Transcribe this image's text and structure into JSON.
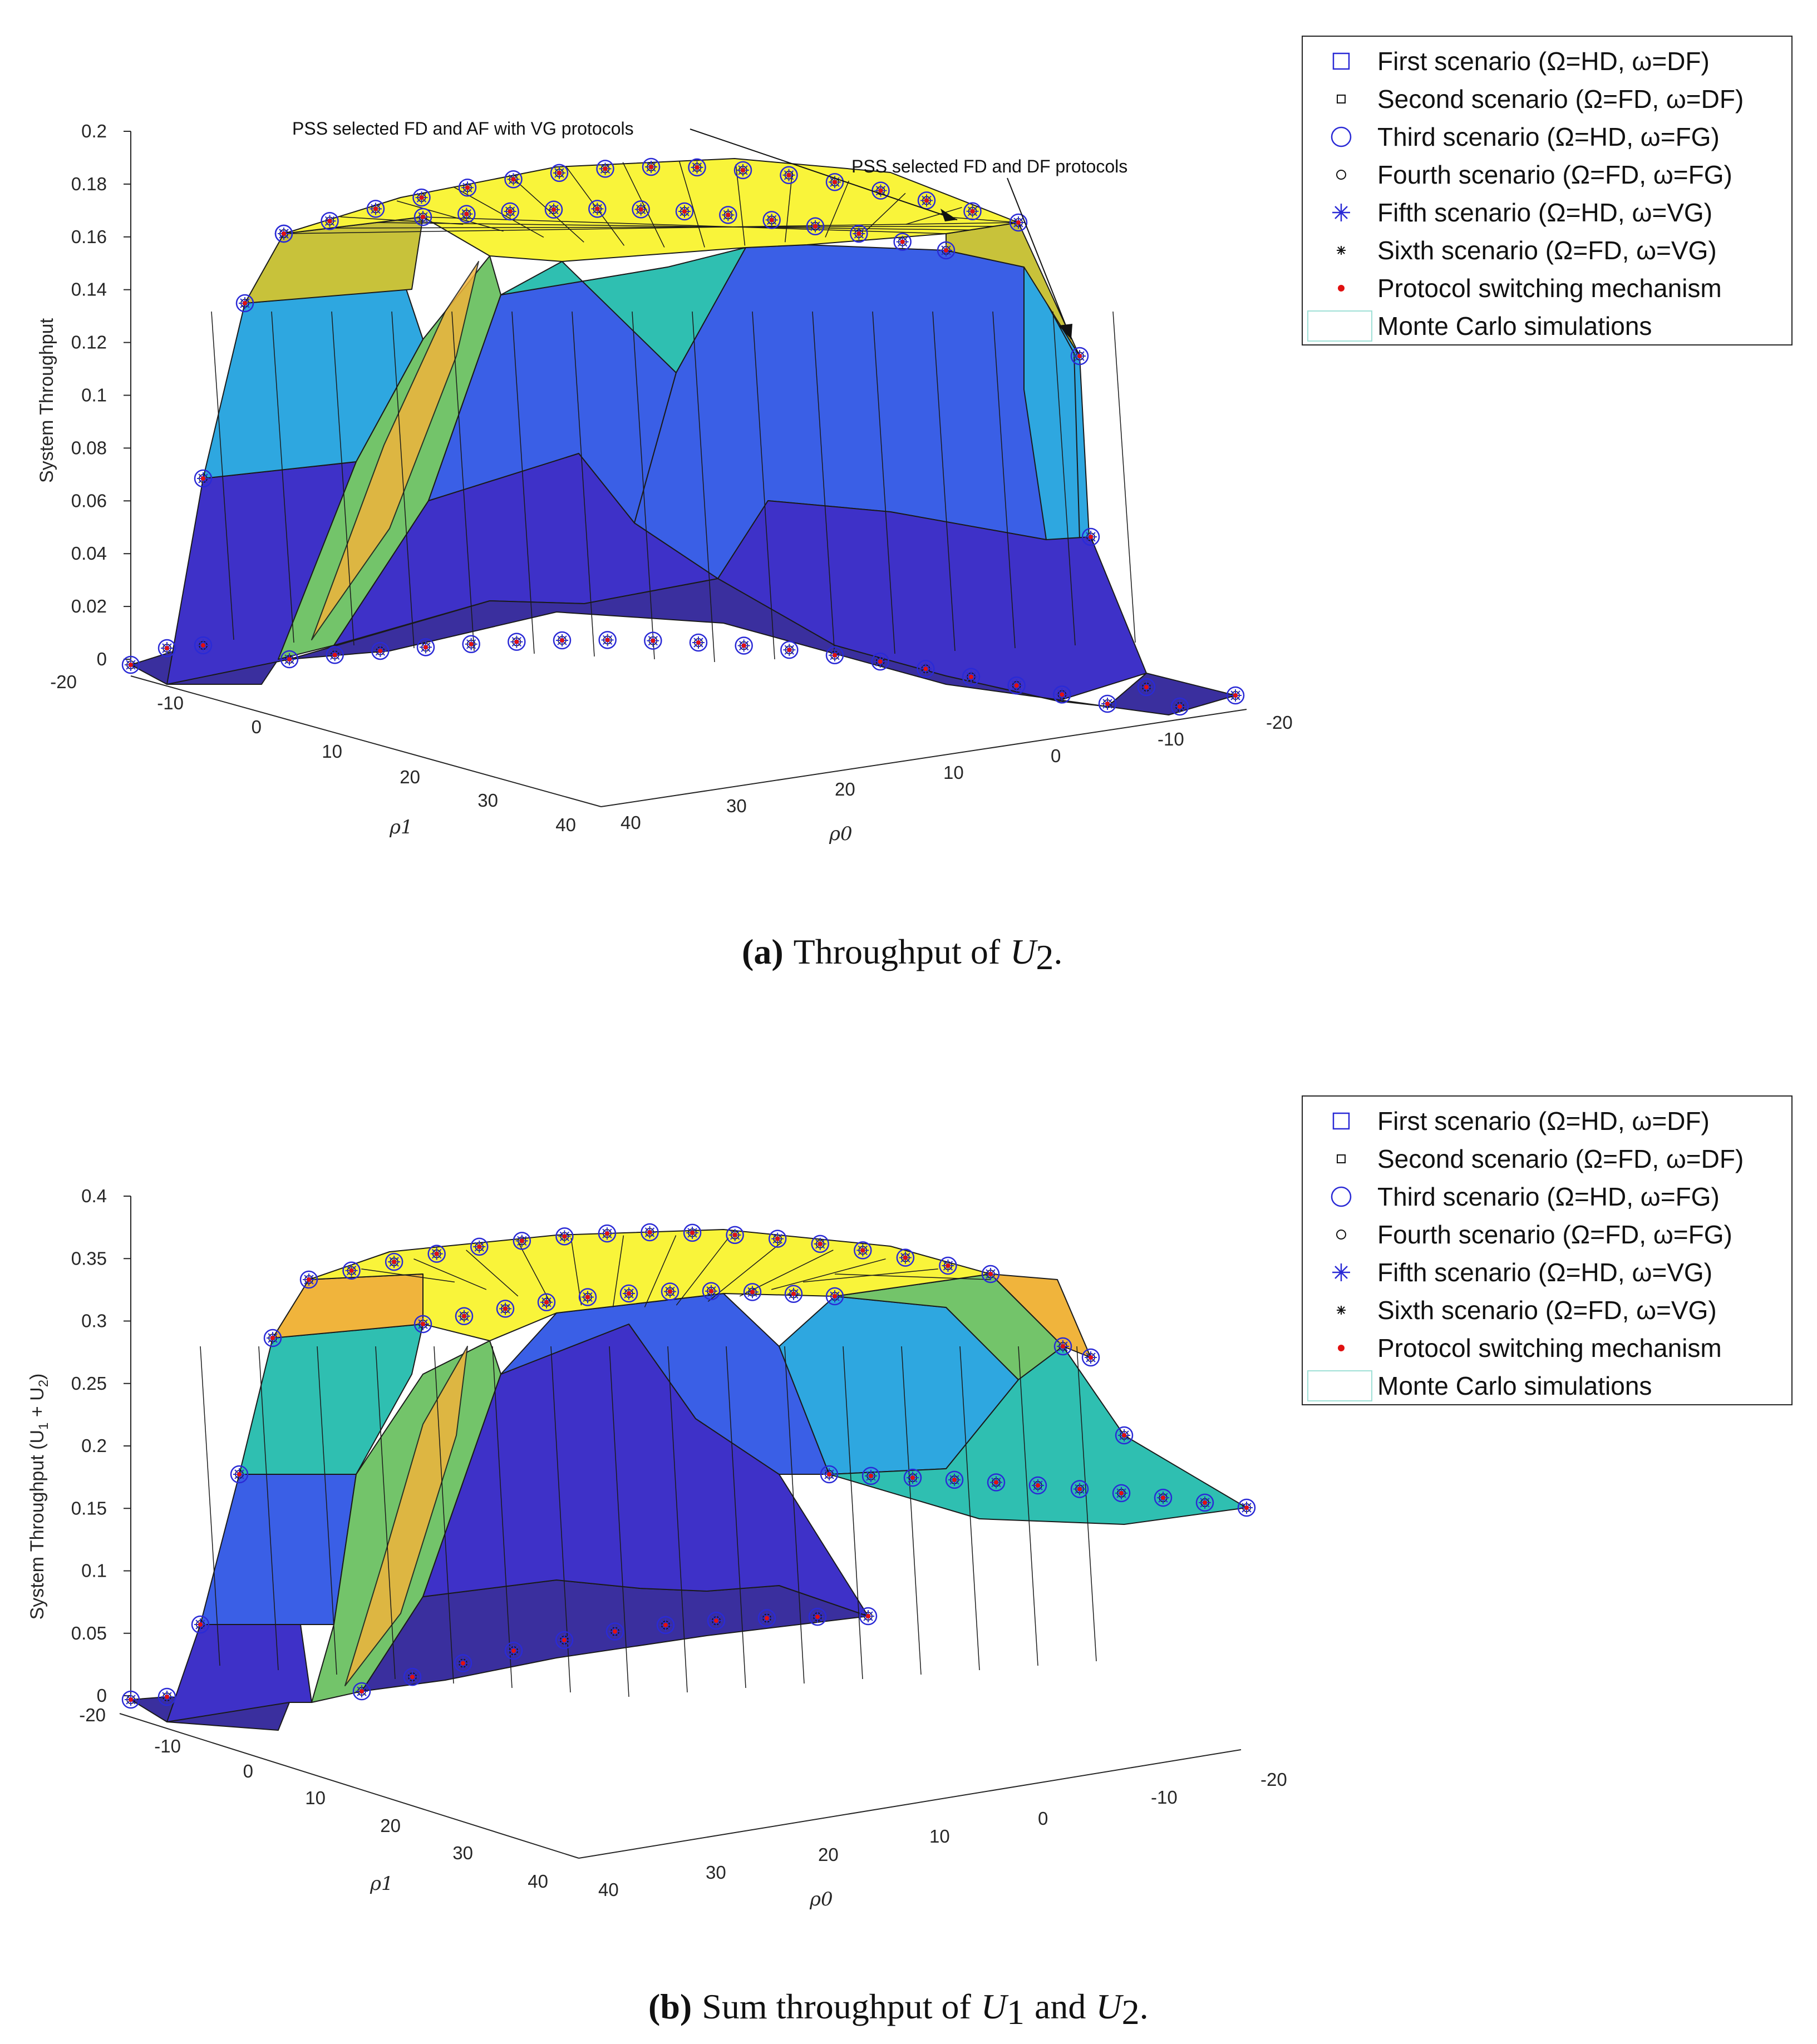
{
  "colors": {
    "yellow": "#f9f43a",
    "olive": "#c8c23a",
    "orange": "#f0b43c",
    "green": "#73c46a",
    "teal": "#2fbfb1",
    "lightblue": "#2ea7e0",
    "blue": "#3a5fe6",
    "darkblue": "#3e31c8",
    "navy": "#3a2f9e",
    "marker_blue": "#2a2ad6",
    "marker_red": "#e01010"
  },
  "legend": {
    "items": [
      {
        "label": "First scenario (Ω=HD, ω=DF)",
        "marker": "square-large"
      },
      {
        "label": "Second scenario (Ω=FD, ω=DF)",
        "marker": "square-small"
      },
      {
        "label": "Third scenario (Ω=HD, ω=FG)",
        "marker": "circle-large"
      },
      {
        "label": "Fourth scenario (Ω=FD, ω=FG)",
        "marker": "circle-small"
      },
      {
        "label": "Fifth scenario (Ω=HD, ω=VG)",
        "marker": "asterisk-blue"
      },
      {
        "label": "Sixth scenario (Ω=FD, ω=VG)",
        "marker": "asterisk-black"
      },
      {
        "label": "Protocol switching mechanism",
        "marker": "dot-red"
      },
      {
        "label": "Monte Carlo simulations",
        "marker": "surface-patch"
      }
    ]
  },
  "chart_data": [
    {
      "type": "surface",
      "title": "",
      "ylabel": "System Throughput",
      "x_axis_label": "ρ1",
      "y_axis_label": "ρ0",
      "x_ticks": [
        "-20",
        "-10",
        "0",
        "10",
        "20",
        "30",
        "40"
      ],
      "y_ticks": [
        "-20",
        "-10",
        "0",
        "10",
        "20",
        "30",
        "40"
      ],
      "z_ticks": [
        "0",
        "0.02",
        "0.04",
        "0.06",
        "0.08",
        "0.1",
        "0.12",
        "0.14",
        "0.16",
        "0.18",
        "0.2"
      ],
      "zlim": [
        0,
        0.2
      ],
      "annotations": [
        "PSS selected FD and AF with VG protocols",
        "PSS selected FD and DF protocols"
      ],
      "surface_summary": {
        "plateau_max": 0.19,
        "edge_values": [
          0,
          0.067,
          0.133,
          0.163
        ],
        "valley_min": 0.022
      },
      "caption_label": "(a)",
      "caption_text": "Throughput of",
      "caption_var": "U",
      "caption_sub": "2",
      "caption_end": "."
    },
    {
      "type": "surface",
      "title": "",
      "ylabel": "System Throughput (U",
      "ylabel_sub1": "1",
      "ylabel_mid": " + U",
      "ylabel_sub2": "2",
      "ylabel_end": ")",
      "x_axis_label": "ρ1",
      "y_axis_label": "ρ0",
      "x_ticks": [
        "-20",
        "-10",
        "0",
        "10",
        "20",
        "30",
        "40"
      ],
      "y_ticks": [
        "-20",
        "-10",
        "0",
        "10",
        "20",
        "30",
        "40"
      ],
      "z_ticks": [
        "0",
        "0.05",
        "0.1",
        "0.15",
        "0.2",
        "0.25",
        "0.3",
        "0.35",
        "0.4"
      ],
      "zlim": [
        0,
        0.4
      ],
      "surface_summary": {
        "plateau_max": 0.37,
        "edge_values": [
          0,
          0.058,
          0.18,
          0.275,
          0.315
        ],
        "valley_min": 0.05
      },
      "caption_label": "(b)",
      "caption_text": "Sum throughput of",
      "caption_var1": "U",
      "caption_sub1": "1",
      "caption_and": "and",
      "caption_var2": "U",
      "caption_sub2": "2",
      "caption_end": "."
    }
  ]
}
